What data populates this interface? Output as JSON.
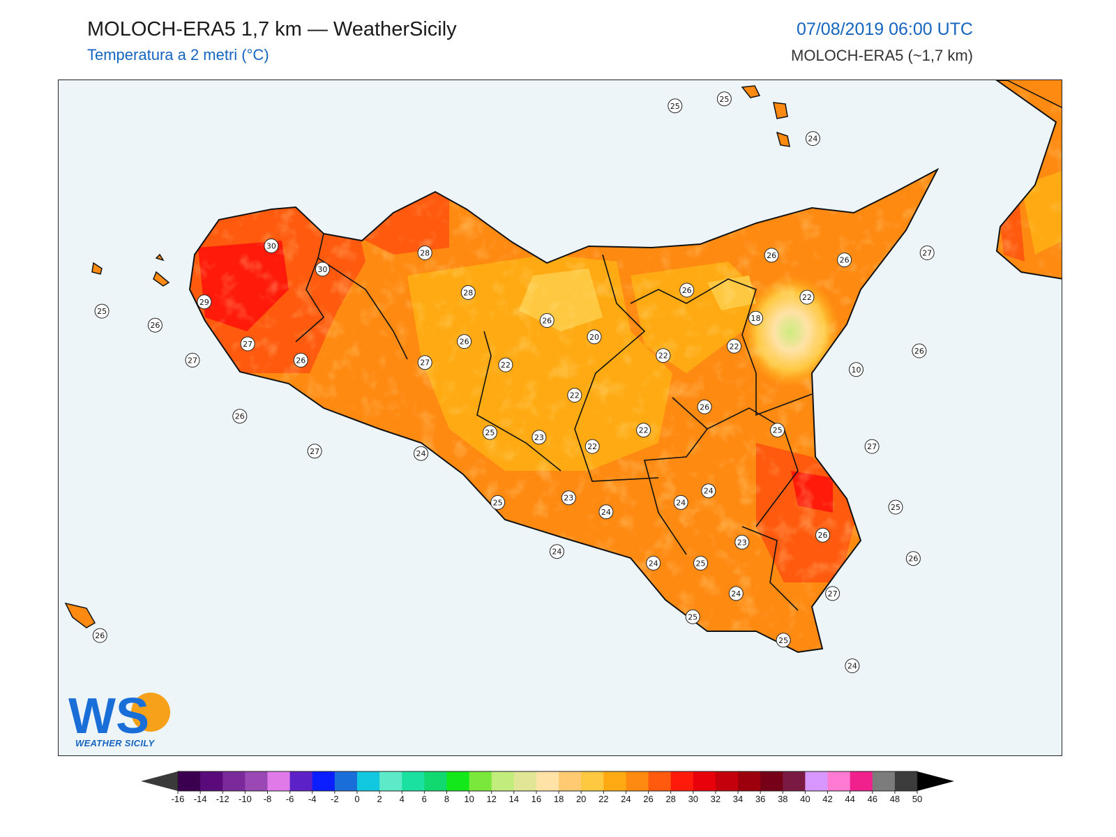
{
  "header": {
    "title": "MOLOCH-ERA5 1,7 km — WeatherSicily",
    "subtitle": "Temperatura a 2 metri (°C)",
    "datetime": "07/08/2019 06:00 UTC",
    "model": "MOLOCH-ERA5 (~1,7 km)"
  },
  "logo": {
    "letters": "WS",
    "tagline": "WEATHER SICILY"
  },
  "stations": [
    {
      "v": "25",
      "lon": 14.93,
      "lat": 38.79
    },
    {
      "v": "25",
      "lon": 15.18,
      "lat": 38.82
    },
    {
      "v": "24",
      "lon": 15.63,
      "lat": 38.65
    },
    {
      "v": "30",
      "lon": 12.88,
      "lat": 38.19
    },
    {
      "v": "30",
      "lon": 13.14,
      "lat": 38.09
    },
    {
      "v": "28",
      "lon": 13.66,
      "lat": 38.16
    },
    {
      "v": "28",
      "lon": 13.88,
      "lat": 37.99
    },
    {
      "v": "29",
      "lon": 12.54,
      "lat": 37.95
    },
    {
      "v": "25",
      "lon": 12.02,
      "lat": 37.91
    },
    {
      "v": "26",
      "lon": 12.29,
      "lat": 37.85
    },
    {
      "v": "27",
      "lon": 12.76,
      "lat": 37.77
    },
    {
      "v": "26",
      "lon": 13.03,
      "lat": 37.7
    },
    {
      "v": "27",
      "lon": 12.48,
      "lat": 37.7
    },
    {
      "v": "26",
      "lon": 12.72,
      "lat": 37.46
    },
    {
      "v": "27",
      "lon": 13.1,
      "lat": 37.31
    },
    {
      "v": "27",
      "lon": 13.66,
      "lat": 37.69
    },
    {
      "v": "26",
      "lon": 13.86,
      "lat": 37.78
    },
    {
      "v": "22",
      "lon": 14.07,
      "lat": 37.68
    },
    {
      "v": "26",
      "lon": 14.28,
      "lat": 37.87
    },
    {
      "v": "20",
      "lon": 14.52,
      "lat": 37.8
    },
    {
      "v": "22",
      "lon": 14.42,
      "lat": 37.55
    },
    {
      "v": "22",
      "lon": 14.87,
      "lat": 37.72
    },
    {
      "v": "26",
      "lon": 14.99,
      "lat": 38.0
    },
    {
      "v": "22",
      "lon": 15.23,
      "lat": 37.76
    },
    {
      "v": "18",
      "lon": 15.34,
      "lat": 37.88
    },
    {
      "v": "22",
      "lon": 15.6,
      "lat": 37.97
    },
    {
      "v": "26",
      "lon": 15.42,
      "lat": 38.15
    },
    {
      "v": "26",
      "lon": 15.79,
      "lat": 38.13
    },
    {
      "v": "27",
      "lon": 16.21,
      "lat": 38.16
    },
    {
      "v": "26",
      "lon": 16.17,
      "lat": 37.74
    },
    {
      "v": "10",
      "lon": 15.85,
      "lat": 37.66
    },
    {
      "v": "25",
      "lon": 13.99,
      "lat": 37.39
    },
    {
      "v": "23",
      "lon": 14.24,
      "lat": 37.37
    },
    {
      "v": "22",
      "lon": 14.51,
      "lat": 37.33
    },
    {
      "v": "22",
      "lon": 14.77,
      "lat": 37.4
    },
    {
      "v": "26",
      "lon": 15.08,
      "lat": 37.5
    },
    {
      "v": "25",
      "lon": 15.45,
      "lat": 37.4
    },
    {
      "v": "27",
      "lon": 15.93,
      "lat": 37.33
    },
    {
      "v": "24",
      "lon": 13.64,
      "lat": 37.3
    },
    {
      "v": "25",
      "lon": 14.03,
      "lat": 37.09
    },
    {
      "v": "23",
      "lon": 14.39,
      "lat": 37.11
    },
    {
      "v": "24",
      "lon": 15.1,
      "lat": 37.14
    },
    {
      "v": "24",
      "lon": 14.96,
      "lat": 37.09
    },
    {
      "v": "24",
      "lon": 14.58,
      "lat": 37.05
    },
    {
      "v": "26",
      "lon": 15.68,
      "lat": 36.95
    },
    {
      "v": "25",
      "lon": 16.05,
      "lat": 37.07
    },
    {
      "v": "23",
      "lon": 15.27,
      "lat": 36.92
    },
    {
      "v": "26",
      "lon": 16.14,
      "lat": 36.85
    },
    {
      "v": "24",
      "lon": 14.33,
      "lat": 36.88
    },
    {
      "v": "24",
      "lon": 14.82,
      "lat": 36.83
    },
    {
      "v": "25",
      "lon": 15.06,
      "lat": 36.83
    },
    {
      "v": "24",
      "lon": 15.24,
      "lat": 36.7
    },
    {
      "v": "27",
      "lon": 15.73,
      "lat": 36.7
    },
    {
      "v": "25",
      "lon": 15.02,
      "lat": 36.6
    },
    {
      "v": "25",
      "lon": 15.48,
      "lat": 36.5
    },
    {
      "v": "24",
      "lon": 15.83,
      "lat": 36.39
    },
    {
      "v": "26",
      "lon": 12.01,
      "lat": 36.52
    }
  ],
  "colorbar": {
    "labels": [
      "-16",
      "-14",
      "-12",
      "-10",
      "-8",
      "-6",
      "-4",
      "-2",
      "0",
      "2",
      "4",
      "6",
      "8",
      "10",
      "12",
      "14",
      "16",
      "18",
      "20",
      "22",
      "24",
      "26",
      "28",
      "30",
      "32",
      "34",
      "36",
      "38",
      "40",
      "42",
      "44",
      "46",
      "48",
      "50"
    ],
    "colors": [
      "#3b0050",
      "#5a0a7a",
      "#7a2a9a",
      "#9a48b4",
      "#e07ae8",
      "#5c22c8",
      "#0a1eff",
      "#1a6ed8",
      "#12c8e0",
      "#5ceac8",
      "#1ae0a0",
      "#12d870",
      "#12e81a",
      "#7ae83a",
      "#c2ec7c",
      "#e0e696",
      "#ffe2a6",
      "#ffca72",
      "#ffc840",
      "#ffaa12",
      "#ff8a12",
      "#ff5a0e",
      "#ff1a0a",
      "#e8000a",
      "#c4000c",
      "#9c000c",
      "#760018",
      "#7a1a42",
      "#d896ff",
      "#ff7ad2",
      "#f0208c",
      "#7c7c7c",
      "#3c3c3c"
    ],
    "under_color": "#3a3a3a",
    "over_color": "#000000"
  }
}
